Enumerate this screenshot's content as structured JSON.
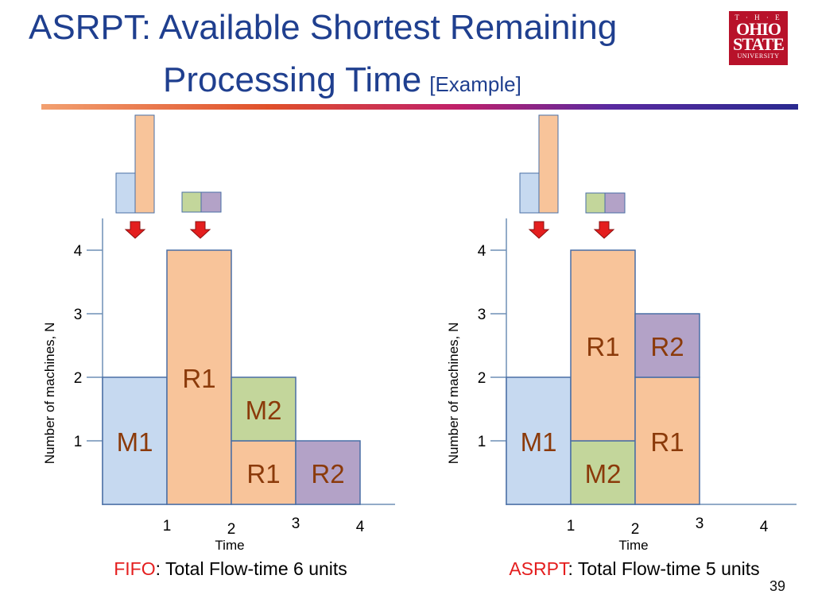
{
  "title": {
    "line1": "ASRPT:  Available Shortest Remaining",
    "line2": "Processing Time",
    "line2_suffix": "[Example]"
  },
  "logo": {
    "top": "T · H · E",
    "main1": "OHIO",
    "main2": "STATE",
    "bottom": "UNIVERSITY"
  },
  "page_number": "39",
  "colors": {
    "title": "#1f3f8f",
    "blue": "#c6d9f0",
    "orange": "#f8c49a",
    "green": "#c3d69b",
    "purple": "#b3a2c7",
    "arrow": "#e41e1e",
    "label_red": "#e41e1e",
    "block_text": "#8b3a0a"
  },
  "diagrams": [
    {
      "id": "fifo",
      "ylabel": "Number of machines, N",
      "xlabel": "Time",
      "yticks": [
        "1",
        "2",
        "3",
        "4"
      ],
      "xticks": [
        "1",
        "2",
        "3",
        "4"
      ],
      "caption_name": "FIFO",
      "caption_rest": ": Total Flow-time 6 units",
      "blocks": [
        {
          "label": "M1",
          "job": "M",
          "t0": 0,
          "t1": 1,
          "n0": 0,
          "n1": 2,
          "color": "blue"
        },
        {
          "label": "R1",
          "job": "R",
          "t0": 1,
          "t1": 2,
          "n0": 0,
          "n1": 4,
          "color": "orange"
        },
        {
          "label": "R1",
          "job": "R",
          "t0": 2,
          "t1": 3,
          "n0": 0,
          "n1": 1,
          "color": "orange"
        },
        {
          "label": "M2",
          "job": "M",
          "t0": 2,
          "t1": 3,
          "n0": 1,
          "n1": 2,
          "color": "green"
        },
        {
          "label": "R2",
          "job": "R",
          "t0": 3,
          "t1": 4,
          "n0": 0,
          "n1": 1,
          "color": "purple"
        }
      ]
    },
    {
      "id": "asrpt",
      "ylabel": "Number of machines, N",
      "xlabel": "Time",
      "yticks": [
        "1",
        "2",
        "3",
        "4"
      ],
      "xticks": [
        "1",
        "2",
        "3",
        "4"
      ],
      "caption_name": "ASRPT",
      "caption_rest": ": Total Flow-time 5 units",
      "blocks": [
        {
          "label": "M1",
          "job": "M",
          "t0": 0,
          "t1": 1,
          "n0": 0,
          "n1": 2,
          "color": "blue"
        },
        {
          "label": "M2",
          "job": "M",
          "t0": 1,
          "t1": 2,
          "n0": 0,
          "n1": 1,
          "color": "green"
        },
        {
          "label": "R1",
          "job": "R",
          "t0": 1,
          "t1": 2,
          "n0": 1,
          "n1": 4,
          "color": "orange"
        },
        {
          "label": "R1",
          "job": "R",
          "t0": 2,
          "t1": 3,
          "n0": 0,
          "n1": 2,
          "color": "orange"
        },
        {
          "label": "R2",
          "job": "R",
          "t0": 2,
          "t1": 3,
          "n0": 2,
          "n1": 3,
          "color": "purple"
        }
      ]
    }
  ]
}
